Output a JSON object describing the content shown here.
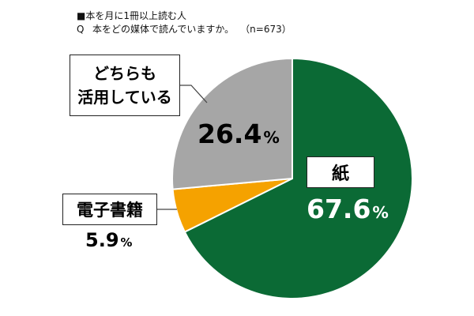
{
  "header": {
    "subtitle": "■本を月に1冊以上読む人",
    "question_mark": "Q",
    "question": "本をどの媒体で読んでいますか。",
    "sample": "（n=673）"
  },
  "colors": {
    "paper": "#0b6a35",
    "ebook": "#f5a200",
    "both": "#a6a6a6",
    "border": "#ffffff",
    "leader": "#444444"
  },
  "chart_data": {
    "type": "pie",
    "title": "本をどの媒体で読んでいますか。",
    "labels": [
      "紙",
      "電子書籍",
      "どちらも活用している"
    ],
    "values": [
      67.6,
      5.9,
      26.4
    ],
    "unit": "%",
    "start": "12 o'clock",
    "direction": "clockwise"
  },
  "labels": {
    "paper": "紙",
    "ebook": "電子書籍",
    "both_line1": "どちらも",
    "both_line2": "活用している"
  },
  "values_text": {
    "paper": "67.6",
    "ebook": "5.9",
    "both": "26.4",
    "unit": "%"
  }
}
